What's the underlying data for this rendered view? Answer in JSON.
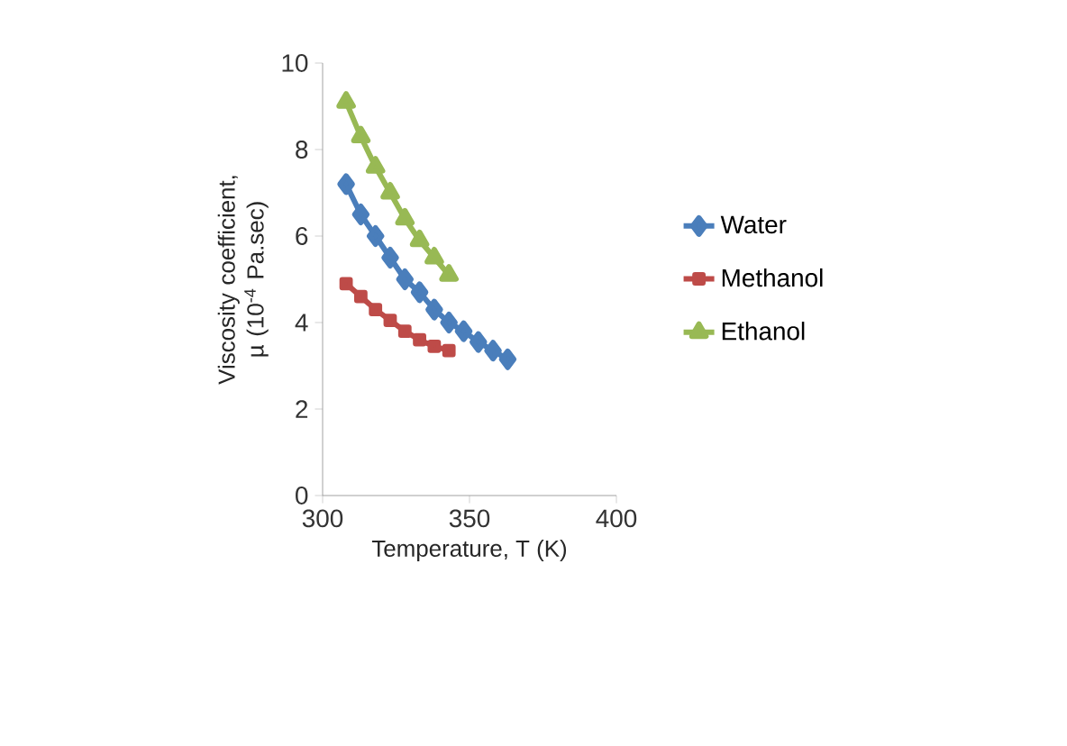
{
  "chart_data": {
    "type": "line",
    "xlabel": "Temperature, T (K)",
    "ylabel": "Viscosity coefficient, µ (10$^{-4}$ Pa.sec)",
    "xlim": [
      300,
      400
    ],
    "xticks": [
      300,
      350,
      400
    ],
    "ylim": [
      0,
      10
    ],
    "yticks": [
      0,
      2,
      4,
      6,
      8,
      10
    ],
    "legend": "right",
    "grid": false,
    "series": [
      {
        "name": "Water",
        "color": "#4a7ebb",
        "marker": "diamond",
        "x": [
          308,
          313,
          318,
          323,
          328,
          333,
          338,
          343,
          348,
          353,
          358,
          363
        ],
        "values": [
          7.2,
          6.5,
          6.0,
          5.5,
          5.0,
          4.7,
          4.3,
          4.0,
          3.8,
          3.55,
          3.35,
          3.15
        ]
      },
      {
        "name": "Methanol",
        "color": "#be4b48",
        "marker": "square",
        "x": [
          308,
          313,
          318,
          323,
          328,
          333,
          338,
          343
        ],
        "values": [
          4.9,
          4.6,
          4.3,
          4.05,
          3.8,
          3.6,
          3.45,
          3.35
        ]
      },
      {
        "name": "Ethanol",
        "color": "#98b954",
        "marker": "triangle",
        "x": [
          308,
          313,
          318,
          323,
          328,
          333,
          338,
          343
        ],
        "values": [
          9.1,
          8.3,
          7.6,
          7.0,
          6.4,
          5.9,
          5.5,
          5.1
        ]
      }
    ]
  }
}
